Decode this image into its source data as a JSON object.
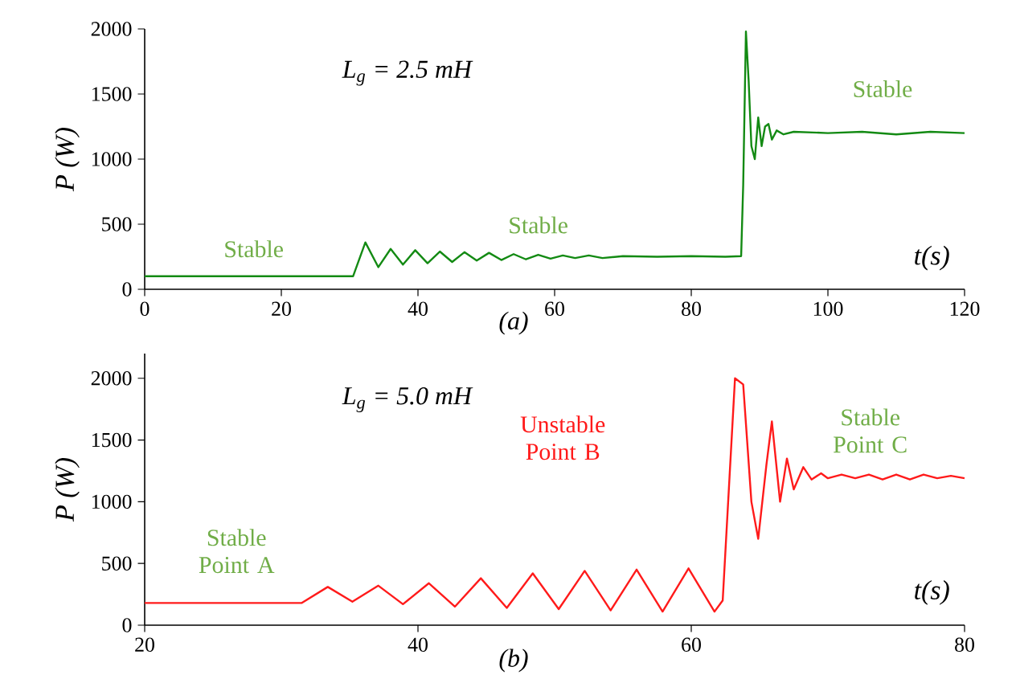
{
  "chart_data": [
    {
      "type": "line",
      "xlabel": "t(s)",
      "ylabel": "P (W)",
      "xlim": [
        0,
        120
      ],
      "ylim": [
        0,
        2000
      ],
      "xticks": [
        0,
        20,
        40,
        60,
        80,
        100,
        120
      ],
      "yticks": [
        0,
        500,
        1000,
        1500,
        2000
      ],
      "series": [
        {
          "color": "#138a13",
          "x": [
            0,
            30.5,
            32.3,
            34.2,
            36,
            37.8,
            39.6,
            41.4,
            43.2,
            45,
            46.8,
            48.6,
            50.4,
            52.2,
            54,
            55.8,
            57.6,
            59.4,
            61.2,
            63,
            65,
            67,
            70,
            75,
            80,
            85,
            87.3,
            87.6,
            88,
            88.4,
            88.8,
            89.3,
            89.8,
            90.3,
            90.8,
            91.3,
            91.8,
            92.5,
            93.5,
            95,
            100,
            105,
            110,
            115,
            120
          ],
          "values": [
            100,
            100,
            360,
            170,
            310,
            190,
            300,
            200,
            290,
            210,
            285,
            220,
            280,
            225,
            270,
            230,
            265,
            235,
            260,
            240,
            260,
            240,
            255,
            250,
            255,
            250,
            255,
            800,
            1980,
            1600,
            1100,
            1000,
            1320,
            1100,
            1250,
            1270,
            1150,
            1220,
            1190,
            1210,
            1200,
            1210,
            1190,
            1210,
            1200
          ]
        }
      ],
      "annotations": [
        "L$_{g}$ = 2.5 mH",
        "(a)",
        "Stable",
        "Stable",
        "Stable"
      ]
    },
    {
      "type": "line",
      "xlabel": "t(s)",
      "ylabel": "P (W)",
      "xlim": [
        20,
        80
      ],
      "ylim": [
        0,
        2200
      ],
      "xticks": [
        20,
        40,
        60,
        80
      ],
      "yticks": [
        0,
        500,
        1000,
        1500,
        2000
      ],
      "series": [
        {
          "color": "#ff1a1a",
          "x": [
            20,
            31.5,
            33.4,
            35.2,
            37.1,
            38.9,
            40.8,
            42.7,
            44.6,
            46.5,
            48.4,
            50.3,
            52.2,
            54.1,
            56,
            57.9,
            59.8,
            61.7,
            62.3,
            62.8,
            63.2,
            63.8,
            64.4,
            64.9,
            65.5,
            65.9,
            66.5,
            67,
            67.5,
            68.2,
            68.8,
            69.5,
            70,
            71,
            72,
            73,
            74,
            75,
            76,
            77,
            78,
            79,
            80
          ],
          "values": [
            180,
            180,
            310,
            190,
            320,
            170,
            340,
            150,
            380,
            140,
            420,
            130,
            440,
            120,
            450,
            110,
            460,
            110,
            200,
            1200,
            2000,
            1950,
            1000,
            700,
            1300,
            1650,
            1000,
            1350,
            1100,
            1280,
            1180,
            1230,
            1190,
            1220,
            1190,
            1220,
            1180,
            1220,
            1180,
            1220,
            1190,
            1210,
            1190
          ]
        }
      ],
      "annotations": [
        "L$_{g}$ = 5.0 mH",
        "(b)",
        "Stable Point A",
        "Unstable Point B",
        "Stable Point C"
      ]
    }
  ]
}
